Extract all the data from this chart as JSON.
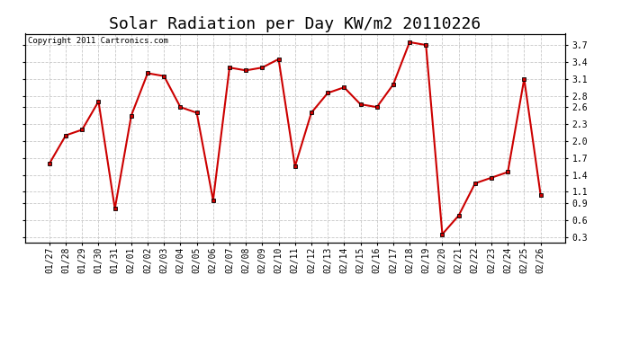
{
  "title": "Solar Radiation per Day KW/m2 20110226",
  "copyright": "Copyright 2011 Cartronics.com",
  "dates": [
    "01/27",
    "01/28",
    "01/29",
    "01/30",
    "01/31",
    "02/01",
    "02/02",
    "02/03",
    "02/04",
    "02/05",
    "02/06",
    "02/07",
    "02/08",
    "02/09",
    "02/10",
    "02/11",
    "02/12",
    "02/13",
    "02/14",
    "02/15",
    "02/16",
    "02/17",
    "02/18",
    "02/19",
    "02/20",
    "02/21",
    "02/22",
    "02/23",
    "02/24",
    "02/25",
    "02/26"
  ],
  "values": [
    1.6,
    2.1,
    2.2,
    2.7,
    0.8,
    2.45,
    3.2,
    3.15,
    2.6,
    2.5,
    0.95,
    3.3,
    3.25,
    3.3,
    3.45,
    1.55,
    2.5,
    2.85,
    2.95,
    2.65,
    2.6,
    3.0,
    3.75,
    3.7,
    0.35,
    0.68,
    1.25,
    1.35,
    1.45,
    3.1,
    1.05
  ],
  "line_color": "#cc0000",
  "marker": "s",
  "marker_size": 3,
  "ylim": [
    0.2,
    3.9
  ],
  "yticks": [
    0.3,
    0.6,
    0.9,
    1.1,
    1.4,
    1.7,
    2.0,
    2.3,
    2.6,
    2.8,
    3.1,
    3.4,
    3.7
  ],
  "ytick_labels": [
    "0.3",
    "0.6",
    "0.9",
    "1.1",
    "1.4",
    "1.7",
    "2.0",
    "2.3",
    "2.6",
    "2.8",
    "3.1",
    "3.4",
    "3.7"
  ],
  "bg_color": "#ffffff",
  "grid_color": "#c8c8c8",
  "title_fontsize": 13,
  "copyright_fontsize": 6.5,
  "tick_fontsize": 7,
  "figwidth": 6.9,
  "figheight": 3.75,
  "dpi": 100
}
